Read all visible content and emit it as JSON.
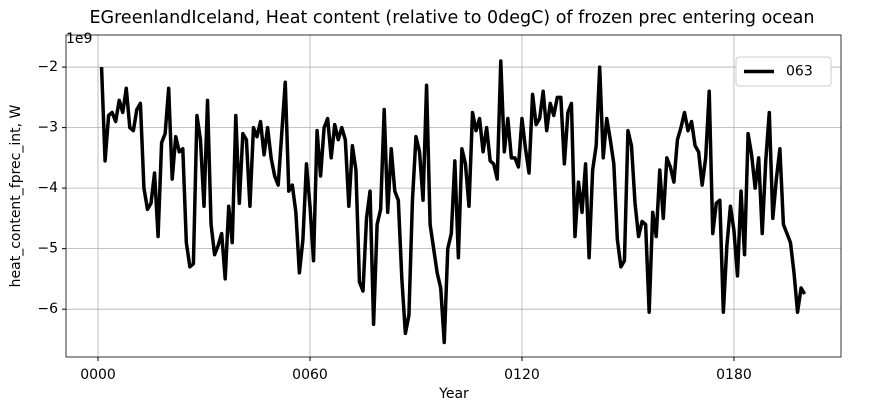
{
  "chart_data": {
    "type": "line",
    "title": "EGreenlandIceland, Heat content (relative to 0degC) of frozen prec entering ocean",
    "xlabel": "Year",
    "ylabel": "heat_content_fprec_int, W",
    "y_offset_label": "1e9",
    "legend": "upper right",
    "grid": true,
    "xlim": [
      -9.06,
      210.3
    ],
    "ylim": [
      -6.79,
      -1.47
    ],
    "xticks": [
      {
        "value": 0,
        "label": "0000"
      },
      {
        "value": 60,
        "label": "0060"
      },
      {
        "value": 120,
        "label": "0120"
      },
      {
        "value": 180,
        "label": "0180"
      }
    ],
    "yticks": [
      {
        "value": -6,
        "label": "−6"
      },
      {
        "value": -5,
        "label": "−5"
      },
      {
        "value": -4,
        "label": "−4"
      },
      {
        "value": -3,
        "label": "−3"
      },
      {
        "value": -2,
        "label": "−2"
      }
    ],
    "x": [
      1,
      2,
      3,
      4,
      5,
      6,
      7,
      8,
      9,
      10,
      11,
      12,
      13,
      14,
      15,
      16,
      17,
      18,
      19,
      20,
      21,
      22,
      23,
      24,
      25,
      26,
      27,
      28,
      29,
      30,
      31,
      32,
      33,
      34,
      35,
      36,
      37,
      38,
      39,
      40,
      41,
      42,
      43,
      44,
      45,
      46,
      47,
      48,
      49,
      50,
      51,
      52,
      53,
      54,
      55,
      56,
      57,
      58,
      59,
      60,
      61,
      62,
      63,
      64,
      65,
      66,
      67,
      68,
      69,
      70,
      71,
      72,
      73,
      74,
      75,
      76,
      77,
      78,
      79,
      80,
      81,
      82,
      83,
      84,
      85,
      86,
      87,
      88,
      89,
      90,
      91,
      92,
      93,
      94,
      95,
      96,
      97,
      98,
      99,
      100,
      101,
      102,
      103,
      104,
      105,
      106,
      107,
      108,
      109,
      110,
      111,
      112,
      113,
      114,
      115,
      116,
      117,
      118,
      119,
      120,
      121,
      122,
      123,
      124,
      125,
      126,
      127,
      128,
      129,
      130,
      131,
      132,
      133,
      134,
      135,
      136,
      137,
      138,
      139,
      140,
      141,
      142,
      143,
      144,
      145,
      146,
      147,
      148,
      149,
      150,
      151,
      152,
      153,
      154,
      155,
      156,
      157,
      158,
      159,
      160,
      161,
      162,
      163,
      164,
      165,
      166,
      167,
      168,
      169,
      170,
      171,
      172,
      173,
      174,
      175,
      176,
      177,
      178,
      179,
      180,
      181,
      182,
      183,
      184,
      185,
      186,
      187,
      188,
      189,
      190,
      191,
      192,
      193,
      194,
      195,
      196,
      197,
      198,
      199,
      200
    ],
    "series": [
      {
        "name": "063",
        "color": "#000000",
        "values": [
          -2.0,
          -3.55,
          -2.8,
          -2.75,
          -2.9,
          -2.55,
          -2.75,
          -2.35,
          -3.0,
          -3.05,
          -2.7,
          -2.6,
          -4.0,
          -4.35,
          -4.25,
          -3.75,
          -4.8,
          -3.25,
          -3.1,
          -2.35,
          -3.85,
          -3.15,
          -3.4,
          -3.35,
          -4.9,
          -5.3,
          -5.25,
          -2.8,
          -3.2,
          -4.3,
          -2.55,
          -4.6,
          -5.1,
          -4.95,
          -4.75,
          -5.5,
          -4.3,
          -4.9,
          -2.8,
          -4.25,
          -3.1,
          -3.2,
          -4.3,
          -3.0,
          -3.15,
          -2.9,
          -3.45,
          -3.0,
          -3.5,
          -3.8,
          -3.95,
          -3.1,
          -2.25,
          -4.05,
          -3.95,
          -4.4,
          -5.4,
          -4.85,
          -3.6,
          -4.3,
          -5.2,
          -3.05,
          -3.8,
          -3.0,
          -2.85,
          -3.5,
          -2.95,
          -3.2,
          -3.0,
          -3.2,
          -4.3,
          -3.3,
          -3.7,
          -5.55,
          -5.7,
          -4.5,
          -4.05,
          -6.25,
          -4.6,
          -4.35,
          -2.7,
          -4.4,
          -3.35,
          -4.05,
          -4.2,
          -5.5,
          -6.4,
          -6.1,
          -4.2,
          -3.15,
          -3.4,
          -4.2,
          -2.3,
          -4.6,
          -5.0,
          -5.4,
          -5.65,
          -6.55,
          -5.0,
          -4.75,
          -3.55,
          -5.15,
          -3.35,
          -3.6,
          -4.3,
          -2.75,
          -3.05,
          -2.85,
          -3.4,
          -3.0,
          -3.55,
          -3.6,
          -3.85,
          -1.9,
          -3.4,
          -2.85,
          -3.5,
          -3.5,
          -3.65,
          -2.85,
          -3.35,
          -3.75,
          -2.45,
          -2.95,
          -2.85,
          -2.4,
          -3.05,
          -2.6,
          -2.8,
          -2.5,
          -2.5,
          -3.6,
          -2.75,
          -2.6,
          -4.8,
          -3.9,
          -4.4,
          -3.6,
          -5.15,
          -3.7,
          -3.3,
          -2.0,
          -3.5,
          -2.85,
          -3.2,
          -3.6,
          -4.85,
          -5.3,
          -5.2,
          -3.05,
          -3.3,
          -4.25,
          -4.8,
          -4.55,
          -4.6,
          -6.05,
          -4.4,
          -4.8,
          -3.7,
          -4.5,
          -3.5,
          -3.65,
          -3.9,
          -3.2,
          -3.0,
          -2.75,
          -3.05,
          -2.9,
          -3.3,
          -3.4,
          -3.95,
          -3.5,
          -2.4,
          -4.75,
          -4.25,
          -4.2,
          -6.05,
          -4.95,
          -4.3,
          -4.7,
          -5.45,
          -4.05,
          -5.1,
          -3.1,
          -3.45,
          -4.0,
          -3.5,
          -4.75,
          -3.55,
          -2.75,
          -4.5,
          -3.85,
          -3.35,
          -4.6,
          -4.75,
          -4.9,
          -5.4,
          -6.05,
          -5.65,
          -5.75
        ]
      }
    ]
  }
}
